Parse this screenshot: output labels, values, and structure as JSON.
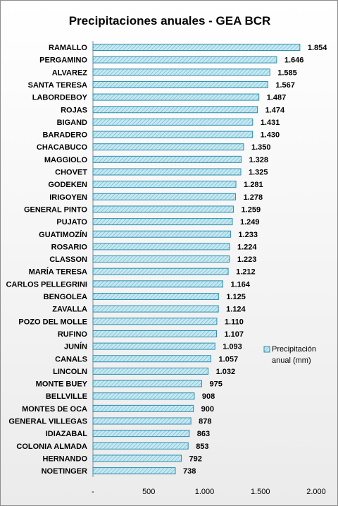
{
  "chart_data": {
    "type": "bar",
    "orientation": "horizontal",
    "title": "Precipitaciones anuales - GEA BCR",
    "xlabel": "",
    "ylabel": "",
    "xlim": [
      0,
      2000
    ],
    "x_ticks": [
      "-",
      "500",
      "1.000",
      "1.500",
      "2.000"
    ],
    "legend_position": "right",
    "grid": false,
    "colors": {
      "bar_fill": "#c7e8f1",
      "bar_stroke": "#2e8fae",
      "bar_pattern": "#5fb3cc"
    },
    "series": [
      {
        "name": "Precipitación anual (mm)",
        "legend_lines": [
          "Precipitación",
          "anual (mm)"
        ],
        "categories": [
          "RAMALLO",
          "PERGAMINO",
          "ALVAREZ",
          "SANTA TERESA",
          "LABORDEBOY",
          "ROJAS",
          "BIGAND",
          "BARADERO",
          "CHACABUCO",
          "MAGGIOLO",
          "CHOVET",
          "GODEKEN",
          "IRIGOYEN",
          "GENERAL PINTO",
          "PUJATO",
          "GUATIMOZÍN",
          "ROSARIO",
          "CLASSON",
          "MARÍA TERESA",
          "CARLOS PELLEGRINI",
          "BENGOLEA",
          "ZAVALLA",
          "POZO DEL MOLLE",
          "RUFINO",
          "JUNÍN",
          "CANALS",
          "LINCOLN",
          "MONTE BUEY",
          "BELLVILLE",
          "MONTES DE OCA",
          "GENERAL VILLEGAS",
          "IDIAZABAL",
          "COLONIA ALMADA",
          "HERNANDO",
          "NOETINGER"
        ],
        "values": [
          1854,
          1646,
          1585,
          1567,
          1487,
          1474,
          1431,
          1430,
          1350,
          1328,
          1325,
          1281,
          1278,
          1259,
          1249,
          1233,
          1224,
          1223,
          1212,
          1164,
          1125,
          1124,
          1110,
          1107,
          1093,
          1057,
          1032,
          975,
          908,
          900,
          878,
          863,
          853,
          792,
          738
        ],
        "value_labels": [
          "1.854",
          "1.646",
          "1.585",
          "1.567",
          "1.487",
          "1.474",
          "1.431",
          "1.430",
          "1.350",
          "1.328",
          "1.325",
          "1.281",
          "1.278",
          "1.259",
          "1.249",
          "1.233",
          "1.224",
          "1.223",
          "1.212",
          "1.164",
          "1.125",
          "1.124",
          "1.110",
          "1.107",
          "1.093",
          "1.057",
          "1.032",
          "975",
          "908",
          "900",
          "878",
          "863",
          "853",
          "792",
          "738"
        ]
      }
    ]
  }
}
